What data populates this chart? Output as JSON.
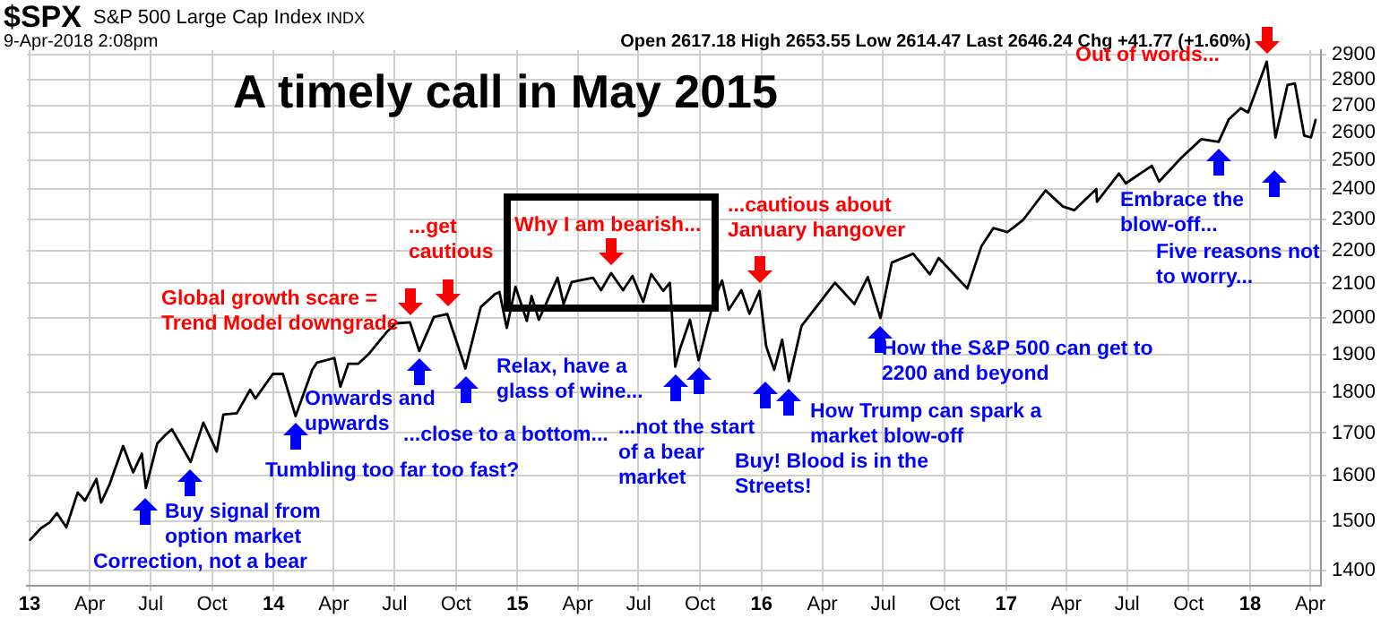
{
  "chart_data": {
    "type": "line",
    "title": "A timely call in May 2015",
    "x": [
      "2013-01-02",
      "2013-01-18",
      "2013-01-31",
      "2013-02-11",
      "2013-02-25",
      "2013-03-14",
      "2013-03-25",
      "2013-04-11",
      "2013-04-18",
      "2013-05-01",
      "2013-05-21",
      "2013-06-05",
      "2013-06-18",
      "2013-06-24",
      "2013-07-11",
      "2013-07-23",
      "2013-08-02",
      "2013-08-30",
      "2013-09-18",
      "2013-10-08",
      "2013-10-18",
      "2013-11-07",
      "2013-11-27",
      "2013-12-05",
      "2013-12-31",
      "2014-01-15",
      "2014-02-03",
      "2014-02-28",
      "2014-03-07",
      "2014-04-02",
      "2014-04-11",
      "2014-04-23",
      "2014-05-08",
      "2014-05-23",
      "2014-06-20",
      "2014-07-03",
      "2014-07-24",
      "2014-08-07",
      "2014-08-29",
      "2014-09-18",
      "2014-10-13",
      "2014-10-15",
      "2014-11-07",
      "2014-11-28",
      "2014-12-05",
      "2014-12-16",
      "2014-12-29",
      "2015-01-15",
      "2015-01-22",
      "2015-02-02",
      "2015-03-02",
      "2015-03-11",
      "2015-03-23",
      "2015-04-24",
      "2015-05-06",
      "2015-05-21",
      "2015-06-08",
      "2015-06-22",
      "2015-07-08",
      "2015-07-20",
      "2015-08-07",
      "2015-08-17",
      "2015-08-25",
      "2015-09-01",
      "2015-09-16",
      "2015-09-29",
      "2015-10-22",
      "2015-11-03",
      "2015-11-13",
      "2015-12-02",
      "2015-12-14",
      "2015-12-29",
      "2016-01-08",
      "2016-01-20",
      "2016-02-01",
      "2016-02-11",
      "2016-03-01",
      "2016-04-20",
      "2016-05-19",
      "2016-06-08",
      "2016-06-27",
      "2016-07-14",
      "2016-08-15",
      "2016-09-09",
      "2016-09-22",
      "2016-11-04",
      "2016-11-25",
      "2016-12-13",
      "2017-01-03",
      "2017-01-26",
      "2017-03-01",
      "2017-03-27",
      "2017-04-13",
      "2017-05-16",
      "2017-05-17",
      "2017-06-19",
      "2017-06-29",
      "2017-08-07",
      "2017-08-18",
      "2017-09-20",
      "2017-10-20",
      "2017-11-15",
      "2017-11-30",
      "2017-12-18",
      "2017-12-29",
      "2018-01-26",
      "2018-02-08",
      "2018-02-26",
      "2018-03-09",
      "2018-03-23",
      "2018-04-02",
      "2018-04-09"
    ],
    "values": [
      1462,
      1486,
      1498,
      1518,
      1488,
      1563,
      1545,
      1593,
      1541,
      1582,
      1669,
      1608,
      1651,
      1573,
      1675,
      1695,
      1709,
      1632,
      1725,
      1656,
      1745,
      1748,
      1807,
      1785,
      1848,
      1848,
      1741,
      1859,
      1878,
      1890,
      1815,
      1875,
      1875,
      1900,
      1962,
      1985,
      1988,
      1909,
      2003,
      2011,
      1874,
      1862,
      2031,
      2068,
      2075,
      1972,
      2090,
      1992,
      2063,
      1995,
      2117,
      2040,
      2104,
      2117,
      2080,
      2131,
      2080,
      2122,
      2046,
      2128,
      2078,
      2102,
      1867,
      1914,
      1995,
      1884,
      2052,
      2109,
      2023,
      2080,
      2012,
      2078,
      1922,
      1859,
      1940,
      1829,
      1978,
      2102,
      2040,
      2119,
      2000,
      2163,
      2190,
      2127,
      2177,
      2085,
      2213,
      2271,
      2258,
      2296,
      2395,
      2341,
      2329,
      2400,
      2357,
      2453,
      2419,
      2480,
      2425,
      2508,
      2575,
      2565,
      2647,
      2690,
      2674,
      2873,
      2581,
      2780,
      2786,
      2588,
      2581,
      2646
    ],
    "color": "#000000",
    "marker": "none",
    "grid": true,
    "log": "y",
    "legend": false,
    "xlim": [
      "2012-12-28",
      "2018-04-17"
    ],
    "xticks": [
      {
        "value": "2013-01-01",
        "label": "13"
      },
      {
        "value": "2013-04-01",
        "label": "Apr"
      },
      {
        "value": "2013-07-01",
        "label": "Jul"
      },
      {
        "value": "2013-10-01",
        "label": "Oct"
      },
      {
        "value": "2014-01-01",
        "label": "14"
      },
      {
        "value": "2014-04-01",
        "label": "Apr"
      },
      {
        "value": "2014-07-01",
        "label": "Jul"
      },
      {
        "value": "2014-10-01",
        "label": "Oct"
      },
      {
        "value": "2015-01-01",
        "label": "15"
      },
      {
        "value": "2015-04-01",
        "label": "Apr"
      },
      {
        "value": "2015-07-01",
        "label": "Jul"
      },
      {
        "value": "2015-10-01",
        "label": "Oct"
      },
      {
        "value": "2016-01-01",
        "label": "16"
      },
      {
        "value": "2016-04-01",
        "label": "Apr"
      },
      {
        "value": "2016-07-01",
        "label": "Jul"
      },
      {
        "value": "2016-10-01",
        "label": "Oct"
      },
      {
        "value": "2017-01-01",
        "label": "17"
      },
      {
        "value": "2017-04-01",
        "label": "Apr"
      },
      {
        "value": "2017-07-01",
        "label": "Jul"
      },
      {
        "value": "2017-10-01",
        "label": "Oct"
      },
      {
        "value": "2018-01-01",
        "label": "18"
      },
      {
        "value": "2018-04-01",
        "label": "Apr"
      }
    ],
    "ylim": [
      1370,
      2920
    ],
    "yticks": [
      1400,
      1500,
      1600,
      1700,
      1800,
      1900,
      2000,
      2100,
      2200,
      2300,
      2400,
      2500,
      2600,
      2700,
      2800,
      2900
    ],
    "annotations": [
      "$SPX",
      "S&P 500 Large Cap Index",
      "INDX",
      "9-Apr-2018 2:08pm",
      "Open 2617.18 High 2653.55 Low 2614.47 Last 2646.24 Chg +41.77 (+1.60%)",
      {
        "text": "Global growth scare = Trend Model downgrade",
        "x": "2014-07-24",
        "y": 1988
      },
      {
        "text": "...get cautious",
        "x": "2014-09-18",
        "y": 2011
      },
      {
        "text": "Why I am bearish...",
        "x": "2015-05-21",
        "y": 2131
      },
      {
        "text": "...cautious about January hangover",
        "x": "2015-12-29",
        "y": 2078
      },
      {
        "text": "Out of words...",
        "x": "2018-01-26",
        "y": 2873
      },
      "Correction, not a bear",
      {
        "text": "Buy signal from option market",
        "x": "2013-08-30",
        "y": 1632
      },
      {
        "text": "Tumbling too far too fast?",
        "x": "2014-02-03",
        "y": 1741
      },
      {
        "text": "Onwards and upwards",
        "x": "2014-08-07",
        "y": 1909
      },
      {
        "text": "...close to a bottom...",
        "x": "2014-10-15",
        "y": 1862
      },
      {
        "text": "Relax, have a glass of wine...",
        "x": "2015-08-25",
        "y": 1867
      },
      {
        "text": "...not the start of a bear market",
        "x": "2015-09-29",
        "y": 1884
      },
      "Buy! Blood is in the Streets!",
      {
        "text": "How Trump can spark a market blow-off",
        "x": "2016-02-11",
        "y": 1829
      },
      {
        "text": "How the S&P 500 can get to 2200 and beyond",
        "x": "2016-06-27",
        "y": 2000
      },
      {
        "text": "Embrace the blow-off...",
        "x": "2017-11-15",
        "y": 2565
      },
      "Five reasons not to worry..."
    ]
  }
}
